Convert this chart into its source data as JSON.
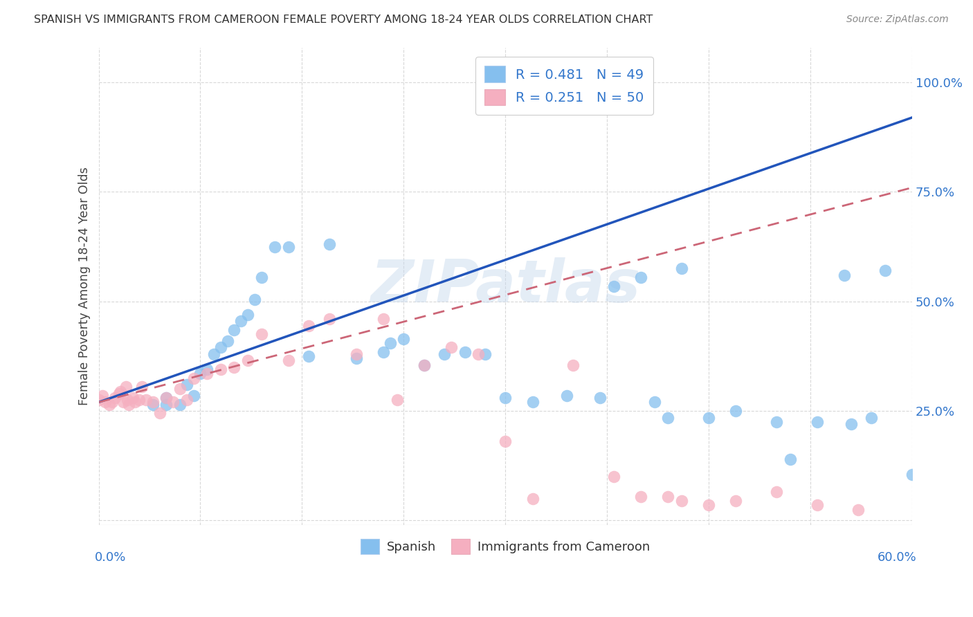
{
  "title": "SPANISH VS IMMIGRANTS FROM CAMEROON FEMALE POVERTY AMONG 18-24 YEAR OLDS CORRELATION CHART",
  "source": "Source: ZipAtlas.com",
  "ylabel": "Female Poverty Among 18-24 Year Olds",
  "xlim": [
    0,
    0.6
  ],
  "ylim": [
    -0.01,
    1.08
  ],
  "ytick_vals": [
    0.0,
    0.25,
    0.5,
    0.75,
    1.0
  ],
  "ytick_labels": [
    "",
    "25.0%",
    "50.0%",
    "75.0%",
    "100.0%"
  ],
  "xtick_vals": [
    0.0,
    0.075,
    0.15,
    0.225,
    0.3,
    0.375,
    0.45,
    0.525,
    0.6
  ],
  "blue_color": "#85bfee",
  "pink_color": "#f5afc0",
  "blue_line_color": "#2255bb",
  "pink_line_color": "#cc6677",
  "watermark": "ZIPatlas",
  "legend_label1": "Spanish",
  "legend_label2": "Immigrants from Cameroon",
  "blue_trend_x0": 0.0,
  "blue_trend_y0": 0.27,
  "blue_trend_x1": 0.6,
  "blue_trend_y1": 0.92,
  "pink_trend_x0": 0.0,
  "pink_trend_y0": 0.27,
  "pink_trend_x1": 0.6,
  "pink_trend_y1": 0.76,
  "spanish_x": [
    0.295,
    0.31,
    0.04,
    0.05,
    0.05,
    0.06,
    0.065,
    0.07,
    0.075,
    0.08,
    0.085,
    0.09,
    0.095,
    0.1,
    0.105,
    0.11,
    0.115,
    0.12,
    0.13,
    0.14,
    0.155,
    0.17,
    0.19,
    0.21,
    0.215,
    0.225,
    0.24,
    0.255,
    0.27,
    0.285,
    0.3,
    0.32,
    0.345,
    0.37,
    0.41,
    0.43,
    0.47,
    0.51,
    0.555,
    0.57,
    0.38,
    0.4,
    0.42,
    0.45,
    0.5,
    0.53,
    0.55,
    0.58,
    0.6
  ],
  "spanish_y": [
    0.975,
    0.975,
    0.265,
    0.265,
    0.28,
    0.265,
    0.31,
    0.285,
    0.335,
    0.345,
    0.38,
    0.395,
    0.41,
    0.435,
    0.455,
    0.47,
    0.505,
    0.555,
    0.625,
    0.625,
    0.375,
    0.63,
    0.37,
    0.385,
    0.405,
    0.415,
    0.355,
    0.38,
    0.385,
    0.38,
    0.28,
    0.27,
    0.285,
    0.28,
    0.27,
    0.575,
    0.25,
    0.14,
    0.22,
    0.235,
    0.535,
    0.555,
    0.235,
    0.235,
    0.225,
    0.225,
    0.56,
    0.57,
    0.105
  ],
  "cameroon_x": [
    0.0,
    0.003,
    0.005,
    0.008,
    0.01,
    0.012,
    0.015,
    0.016,
    0.018,
    0.02,
    0.021,
    0.022,
    0.025,
    0.027,
    0.03,
    0.032,
    0.035,
    0.04,
    0.045,
    0.05,
    0.055,
    0.06,
    0.065,
    0.07,
    0.08,
    0.09,
    0.1,
    0.11,
    0.12,
    0.14,
    0.155,
    0.17,
    0.19,
    0.21,
    0.22,
    0.24,
    0.26,
    0.28,
    0.3,
    0.32,
    0.35,
    0.38,
    0.4,
    0.42,
    0.43,
    0.45,
    0.47,
    0.5,
    0.53,
    0.56
  ],
  "cameroon_y": [
    0.275,
    0.285,
    0.27,
    0.265,
    0.27,
    0.28,
    0.29,
    0.295,
    0.27,
    0.305,
    0.275,
    0.265,
    0.28,
    0.27,
    0.275,
    0.305,
    0.275,
    0.27,
    0.245,
    0.28,
    0.27,
    0.3,
    0.275,
    0.325,
    0.335,
    0.345,
    0.35,
    0.365,
    0.425,
    0.365,
    0.445,
    0.46,
    0.38,
    0.46,
    0.275,
    0.355,
    0.395,
    0.38,
    0.18,
    0.05,
    0.355,
    0.1,
    0.055,
    0.055,
    0.045,
    0.035,
    0.045,
    0.065,
    0.035,
    0.025
  ]
}
